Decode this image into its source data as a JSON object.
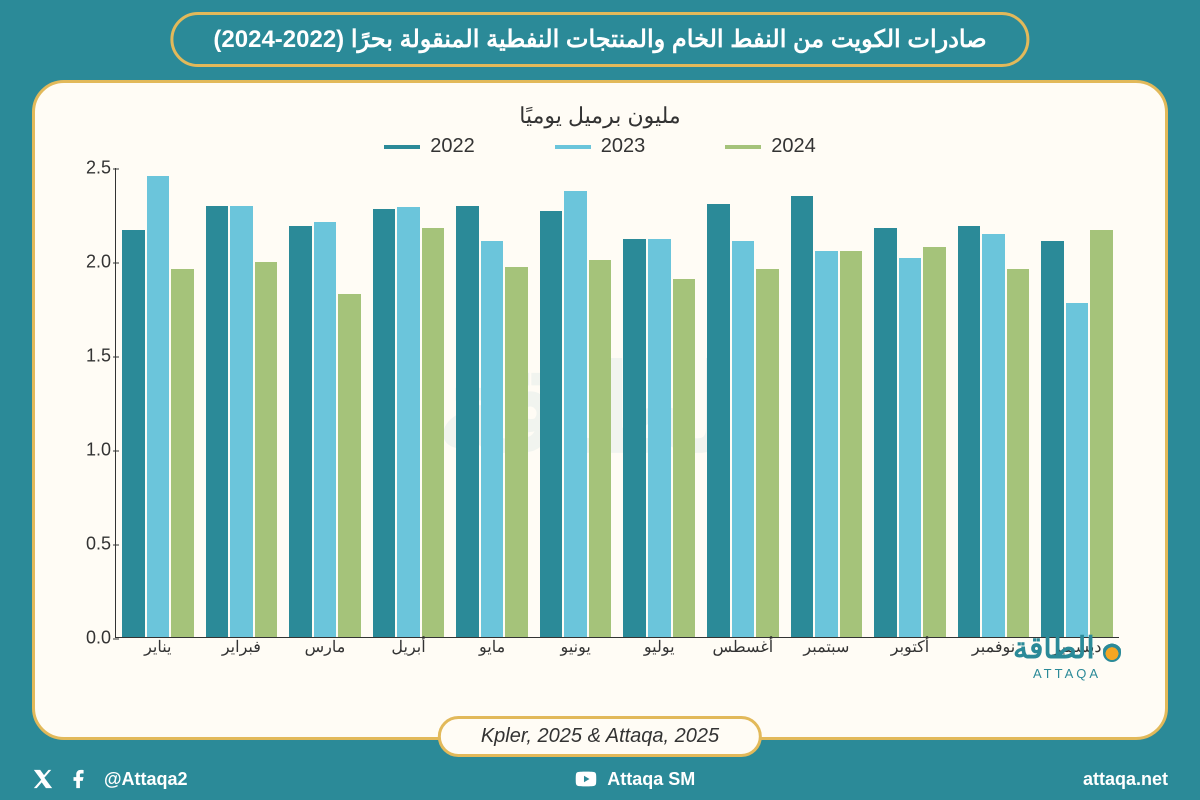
{
  "header": {
    "title": "صادرات الكويت من النفط الخام والمنتجات النفطية المنقولة بحرًا (2022-2024)"
  },
  "chart": {
    "type": "bar",
    "subtitle": "مليون برميل يوميًا",
    "background_color": "#fffcf5",
    "card_border_color": "#e2b95a",
    "page_background": "#2b8a98",
    "ylim": [
      0.0,
      2.5
    ],
    "ytick_step": 0.5,
    "yticks": [
      "0.0",
      "0.5",
      "1.0",
      "1.5",
      "2.0",
      "2.5"
    ],
    "series": [
      {
        "name": "2022",
        "color": "#2b8a98"
      },
      {
        "name": "2023",
        "color": "#6bc5db"
      },
      {
        "name": "2024",
        "color": "#a5c37a"
      }
    ],
    "categories": [
      "يناير",
      "فبراير",
      "مارس",
      "أبريل",
      "مايو",
      "يونيو",
      "يوليو",
      "أغسطس",
      "سبتمبر",
      "أكتوبر",
      "نوفمبر",
      "ديسمبر"
    ],
    "data": {
      "2022": [
        2.17,
        2.3,
        2.19,
        2.28,
        2.3,
        2.27,
        2.12,
        2.31,
        2.35,
        2.18,
        2.19,
        2.11
      ],
      "2023": [
        2.46,
        2.3,
        2.21,
        2.29,
        2.11,
        2.38,
        2.12,
        2.11,
        2.06,
        2.02,
        2.15,
        1.78
      ],
      "2024": [
        1.96,
        2.0,
        1.83,
        2.18,
        1.97,
        2.01,
        1.91,
        1.96,
        2.06,
        2.08,
        1.96,
        2.17
      ]
    },
    "bar_width": 0.85,
    "axis_color": "#333333",
    "label_fontsize": 18,
    "title_fontsize": 22
  },
  "source": {
    "text": "Kpler, 2025 & Attaqa, 2025"
  },
  "brand": {
    "name_ar": "الطاقة",
    "name_en": "ATTAQA",
    "site": "attaqa.net"
  },
  "social": {
    "handle": "@Attaqa2",
    "youtube": "Attaqa SM"
  }
}
